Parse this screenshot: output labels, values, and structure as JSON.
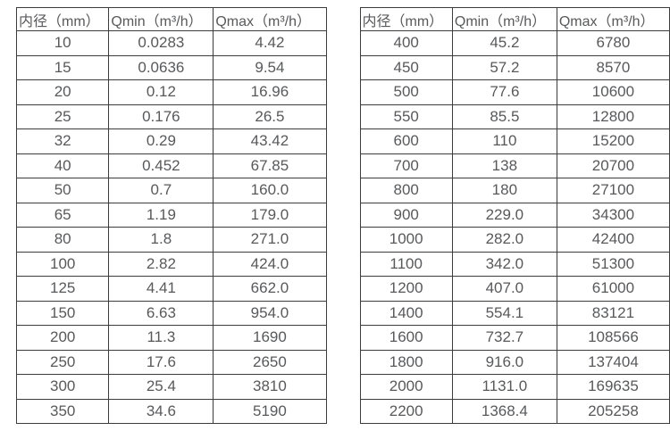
{
  "colors": {
    "background": "#ffffff",
    "border": "#3c3c3c",
    "text": "#58595b"
  },
  "tables": [
    {
      "name": "flow-spec-small-diameters",
      "headers": [
        "内径（mm）",
        "Qmin（m³/h）",
        "Qmax（m³/h）"
      ],
      "rows": [
        [
          "10",
          "0.0283",
          "4.42"
        ],
        [
          "15",
          "0.0636",
          "9.54"
        ],
        [
          "20",
          "0.12",
          "16.96"
        ],
        [
          "25",
          "0.176",
          "26.5"
        ],
        [
          "32",
          "0.29",
          "43.42"
        ],
        [
          "40",
          "0.452",
          "67.85"
        ],
        [
          "50",
          "0.7",
          "160.0"
        ],
        [
          "65",
          "1.19",
          "179.0"
        ],
        [
          "80",
          "1.8",
          "271.0"
        ],
        [
          "100",
          "2.82",
          "424.0"
        ],
        [
          "125",
          "4.41",
          "662.0"
        ],
        [
          "150",
          "6.63",
          "954.0"
        ],
        [
          "200",
          "11.3",
          "1690"
        ],
        [
          "250",
          "17.6",
          "2650"
        ],
        [
          "300",
          "25.4",
          "3810"
        ],
        [
          "350",
          "34.6",
          "5190"
        ]
      ]
    },
    {
      "name": "flow-spec-large-diameters",
      "headers": [
        "内径（mm）",
        "Qmin（m³/h）",
        "Qmax（m³/h）"
      ],
      "rows": [
        [
          "400",
          "45.2",
          "6780"
        ],
        [
          "450",
          "57.2",
          "8570"
        ],
        [
          "500",
          "77.6",
          "10600"
        ],
        [
          "550",
          "85.5",
          "12800"
        ],
        [
          "600",
          "110",
          "15200"
        ],
        [
          "700",
          "138",
          "20700"
        ],
        [
          "800",
          "180",
          "27100"
        ],
        [
          "900",
          "229.0",
          "34300"
        ],
        [
          "1000",
          "282.0",
          "42400"
        ],
        [
          "1100",
          "342.0",
          "51300"
        ],
        [
          "1200",
          "407.0",
          "61000"
        ],
        [
          "1400",
          "554.1",
          "83121"
        ],
        [
          "1600",
          "732.7",
          "108566"
        ],
        [
          "1800",
          "916.0",
          "137404"
        ],
        [
          "2000",
          "1131.0",
          "169635"
        ],
        [
          "2200",
          "1368.4",
          "205258"
        ]
      ]
    }
  ]
}
